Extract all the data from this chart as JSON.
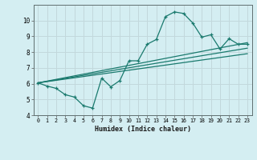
{
  "xlabel": "Humidex (Indice chaleur)",
  "background_color": "#d4eef2",
  "grid_color": "#c2d8dc",
  "line_color": "#1a7a6e",
  "xlim": [
    -0.5,
    23.5
  ],
  "ylim": [
    4,
    11
  ],
  "yticks": [
    4,
    5,
    6,
    7,
    8,
    9,
    10
  ],
  "xticks": [
    0,
    1,
    2,
    3,
    4,
    5,
    6,
    7,
    8,
    9,
    10,
    11,
    12,
    13,
    14,
    15,
    16,
    17,
    18,
    19,
    20,
    21,
    22,
    23
  ],
  "main_x": [
    0,
    1,
    2,
    3,
    4,
    5,
    6,
    7,
    8,
    9,
    10,
    11,
    12,
    13,
    14,
    15,
    16,
    17,
    18,
    19,
    20,
    21,
    22,
    23
  ],
  "main_y": [
    6.05,
    5.85,
    5.7,
    5.3,
    5.15,
    4.6,
    4.45,
    6.35,
    5.8,
    6.2,
    7.45,
    7.45,
    8.5,
    8.8,
    10.25,
    10.55,
    10.45,
    9.85,
    8.95,
    9.1,
    8.2,
    8.85,
    8.5,
    8.5
  ],
  "line1_x": [
    0,
    23
  ],
  "line1_y": [
    6.05,
    8.6
  ],
  "line2_x": [
    0,
    23
  ],
  "line2_y": [
    6.05,
    8.25
  ],
  "line3_x": [
    0,
    23
  ],
  "line3_y": [
    6.05,
    7.9
  ]
}
